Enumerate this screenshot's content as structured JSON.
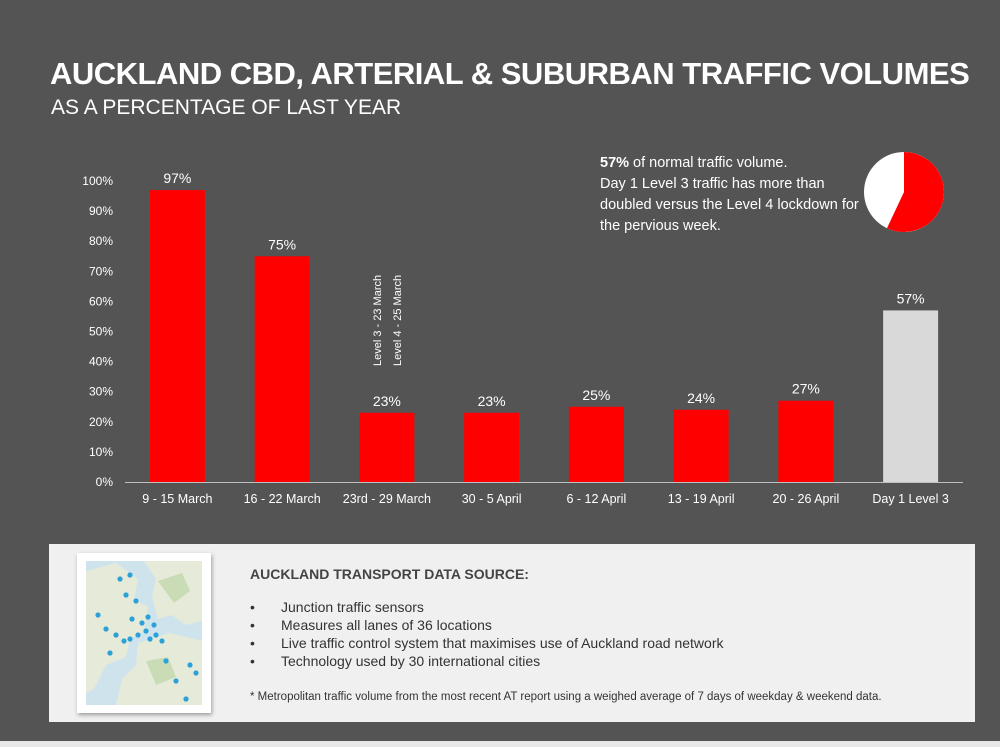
{
  "header": {
    "title": "AUCKLAND CBD, ARTERIAL & SUBURBAN TRAFFIC VOLUMES",
    "subtitle": "AS A PERCENTAGE OF LAST YEAR"
  },
  "chart_data": {
    "type": "bar",
    "title": "AUCKLAND CBD, ARTERIAL & SUBURBAN TRAFFIC VOLUMES",
    "subtitle": "AS A PERCENTAGE OF LAST YEAR",
    "categories": [
      "9 - 15 March",
      "16 - 22 March",
      "23rd -  29 March",
      "30 - 5 April",
      "6 - 12 April",
      "13 - 19 April",
      "20 - 26 April",
      "Day 1 Level 3"
    ],
    "values": [
      97,
      75,
      23,
      23,
      25,
      24,
      27,
      57
    ],
    "data_labels": [
      "97%",
      "75%",
      "23%",
      "23%",
      "25%",
      "24%",
      "27%",
      "57%"
    ],
    "bar_colors": [
      "#ff0000",
      "#ff0000",
      "#ff0000",
      "#ff0000",
      "#ff0000",
      "#ff0000",
      "#ff0000",
      "#d9d9d9"
    ],
    "ylim": [
      0,
      100
    ],
    "y_ticks": [
      "0%",
      "10%",
      "20%",
      "30%",
      "40%",
      "50%",
      "60%",
      "70%",
      "80%",
      "90%",
      "100%"
    ],
    "grid": false,
    "annotations": [
      "Level 3 - 23 March",
      "Level 4 - 25 March"
    ],
    "xlabel": "",
    "ylabel": ""
  },
  "callout": {
    "value": "57%",
    "text_after_value": " of normal traffic volume.",
    "text": "Day 1 Level 3 traffic has more than doubled versus the Level 4 lockdown for the pervious week."
  },
  "pie": {
    "value_percent": 57,
    "fill_color": "#ff0000",
    "rest_color": "#ffffff"
  },
  "info": {
    "heading": "AUCKLAND TRANSPORT DATA SOURCE:",
    "bullet_char": "•",
    "bullets": [
      "Junction traffic sensors",
      "Measures all lanes of 36 locations",
      "Live traffic control system that maximises use of Auckland road network",
      "Technology used by 30 international cities"
    ],
    "footnote": "* Metropolitan traffic volume from the most recent AT report using a weighed average of 7 days of weekday & weekend data."
  },
  "map_icon": "auckland-sensor-map"
}
